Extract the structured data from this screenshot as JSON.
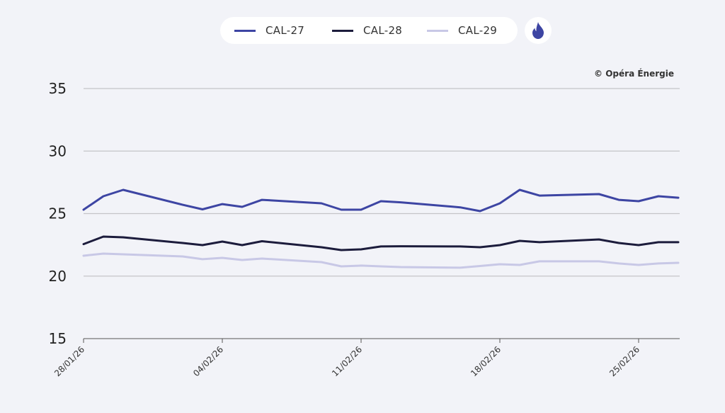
{
  "legend": {
    "items": [
      {
        "label": "CAL-27",
        "color": "#3d45a3"
      },
      {
        "label": "CAL-28",
        "color": "#1c1c3c"
      },
      {
        "label": "CAL-29",
        "color": "#c8c8e6"
      }
    ],
    "toggle_icon": "flame-icon",
    "toggle_color": "#3d45a3"
  },
  "credit": "© Opéra Énergie",
  "chart_data": {
    "type": "line",
    "title": "",
    "xlabel": "",
    "ylabel": "",
    "ylim": [
      15,
      37
    ],
    "yticks": [
      15,
      20,
      25,
      30,
      35
    ],
    "xtick_labels": [
      "28/01/26",
      "04/02/26",
      "11/02/26",
      "18/02/26",
      "25/02/26"
    ],
    "grid": true,
    "legend_position": "top-center",
    "x": [
      "28/01/26",
      "29/01/26",
      "30/01/26",
      "02/02/26",
      "03/02/26",
      "04/02/26",
      "05/02/26",
      "06/02/26",
      "09/02/26",
      "10/02/26",
      "11/02/26",
      "12/02/26",
      "13/02/26",
      "16/02/26",
      "17/02/26",
      "18/02/26",
      "19/02/26",
      "20/02/26",
      "23/02/26",
      "24/02/26",
      "25/02/26",
      "26/02/26",
      "27/02/26"
    ],
    "series": [
      {
        "name": "CAL-27",
        "color": "#3d45a3",
        "values": [
          25.31,
          26.39,
          26.9,
          25.7,
          25.34,
          25.76,
          25.54,
          26.1,
          25.82,
          25.31,
          25.31,
          25.99,
          25.9,
          25.5,
          25.2,
          25.82,
          26.9,
          26.44,
          26.56,
          26.1,
          25.99,
          26.39,
          26.27
        ]
      },
      {
        "name": "CAL-28",
        "color": "#1c1c3c",
        "values": [
          22.56,
          23.16,
          23.1,
          22.65,
          22.48,
          22.76,
          22.48,
          22.79,
          22.31,
          22.08,
          22.14,
          22.37,
          22.39,
          22.37,
          22.31,
          22.48,
          22.82,
          22.71,
          22.93,
          22.65,
          22.48,
          22.71,
          22.71
        ]
      },
      {
        "name": "CAL-29",
        "color": "#c8c8e6",
        "values": [
          21.63,
          21.8,
          21.74,
          21.57,
          21.35,
          21.46,
          21.29,
          21.4,
          21.12,
          20.78,
          20.84,
          20.78,
          20.72,
          20.67,
          20.81,
          20.95,
          20.89,
          21.18,
          21.18,
          21.01,
          20.89,
          21.01,
          21.06
        ]
      }
    ]
  }
}
